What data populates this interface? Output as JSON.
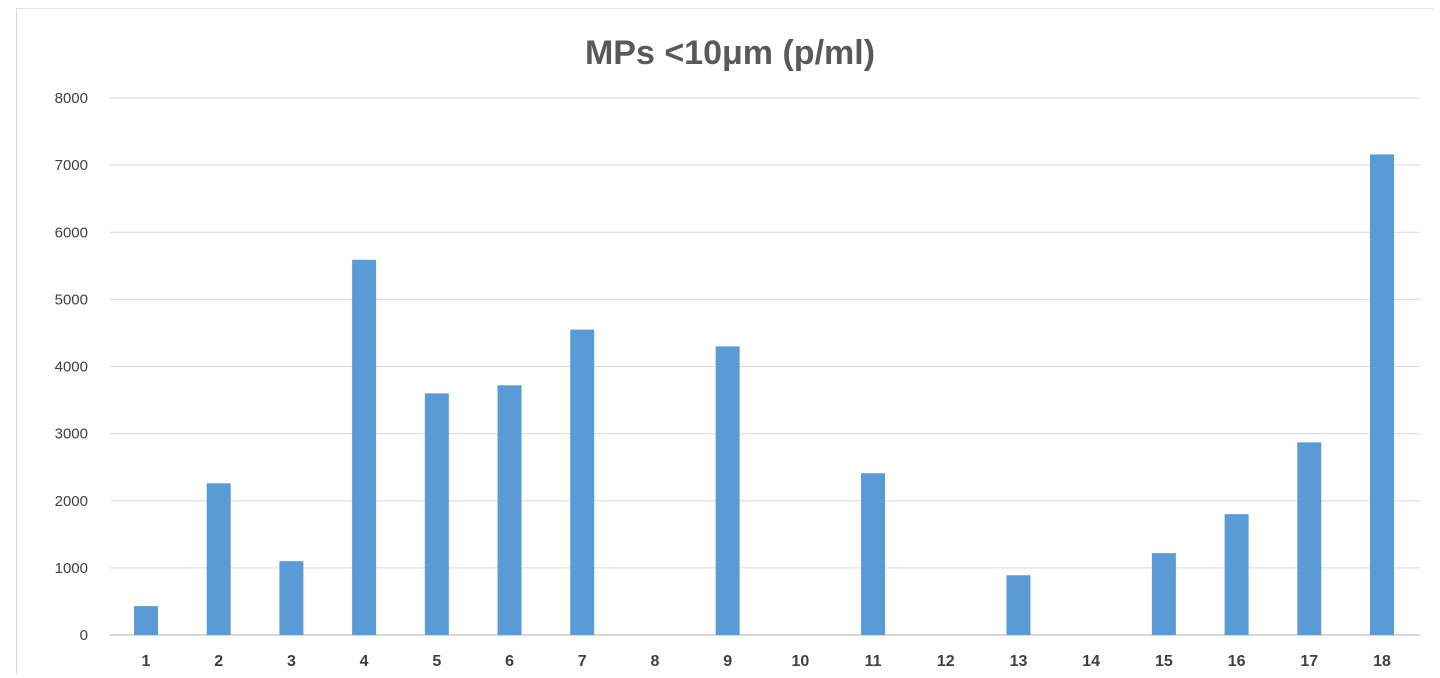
{
  "chart_data": {
    "type": "bar",
    "title": "MPs <10μm (p/ml)",
    "xlabel": "",
    "ylabel": "",
    "categories": [
      "1",
      "2",
      "3",
      "4",
      "5",
      "6",
      "7",
      "8",
      "9",
      "10",
      "11",
      "12",
      "13",
      "14",
      "15",
      "16",
      "17",
      "18"
    ],
    "series": [
      {
        "values": [
          430,
          2260,
          1100,
          5590,
          3600,
          3720,
          4550,
          0,
          4300,
          0,
          2410,
          0,
          890,
          0,
          1220,
          1800,
          2870,
          7160
        ]
      }
    ],
    "ylim": [
      0,
      8000
    ],
    "yticks": [
      0,
      1000,
      2000,
      3000,
      4000,
      5000,
      6000,
      7000,
      8000
    ],
    "grid": true,
    "legend": "none",
    "bar_color": "#5b9bd5",
    "grid_color": "#d9d9d9",
    "text_color": "#404040",
    "title_color": "#595959"
  }
}
